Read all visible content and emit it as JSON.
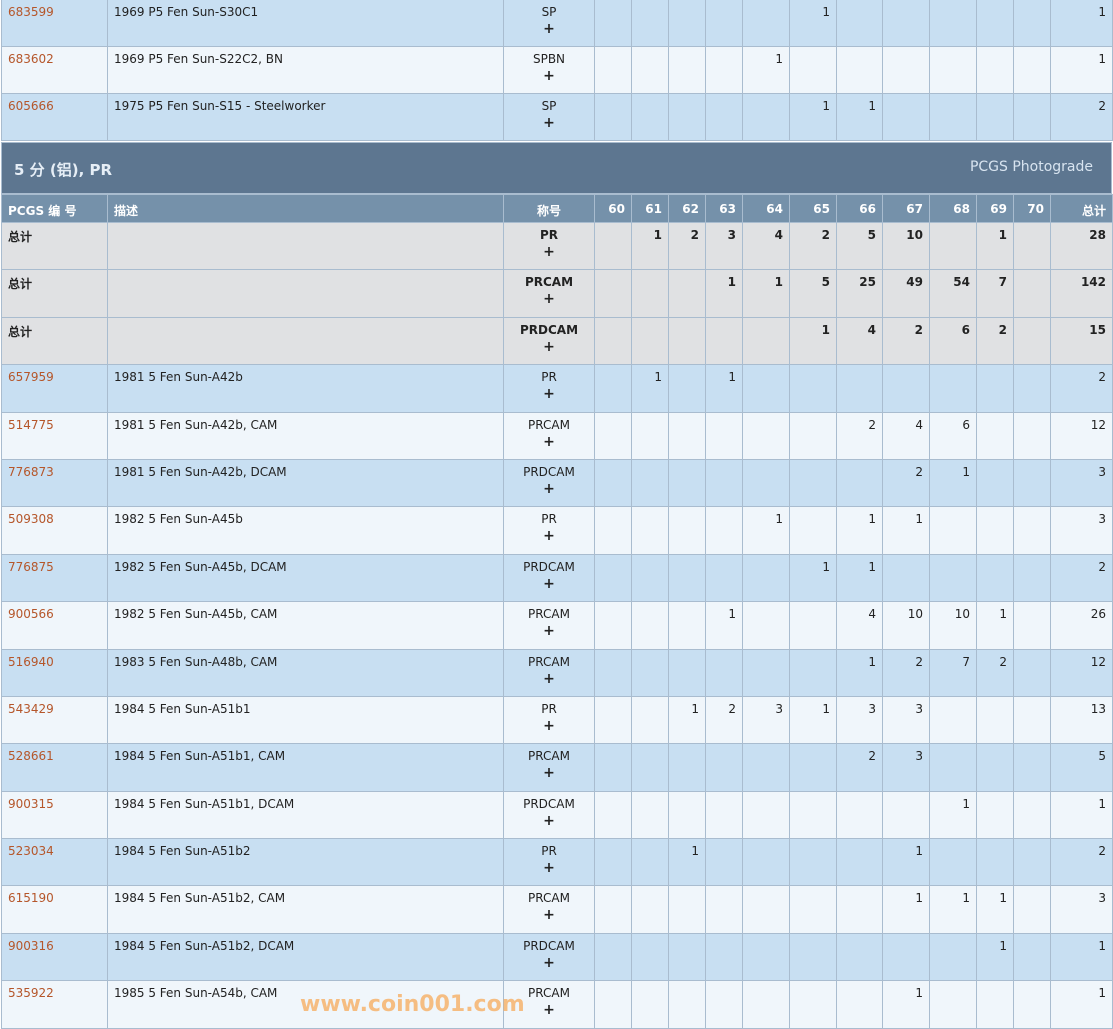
{
  "columns": {
    "pcgs_no": "PCGS 编 号",
    "description": "描述",
    "designation": "称号",
    "grades": [
      "60",
      "61",
      "62",
      "63",
      "64",
      "65",
      "66",
      "67",
      "68",
      "69",
      "70"
    ],
    "total": "总计"
  },
  "plus_label": "+",
  "top_rows": [
    {
      "pcgs": "683599",
      "desc": "1969 P5 Fen Sun-S30C1",
      "des": "SP",
      "grades": [
        "",
        "",
        "",
        "",
        "",
        "1",
        "",
        "",
        "",
        "",
        ""
      ],
      "total": "1"
    },
    {
      "pcgs": "683602",
      "desc": "1969 P5 Fen Sun-S22C2, BN",
      "des": "SPBN",
      "grades": [
        "",
        "",
        "",
        "",
        "1",
        "",
        "",
        "",
        "",
        "",
        ""
      ],
      "total": "1"
    },
    {
      "pcgs": "605666",
      "desc": "1975 P5 Fen Sun-S15 - Steelworker",
      "des": "SP",
      "grades": [
        "",
        "",
        "",
        "",
        "",
        "1",
        "1",
        "",
        "",
        "",
        ""
      ],
      "total": "2"
    }
  ],
  "section": {
    "title": "5 分 (铝), PR",
    "photograde_link": "PCGS Photograde"
  },
  "totals": [
    {
      "label": "总计",
      "des": "PR",
      "grades": [
        "",
        "1",
        "2",
        "3",
        "4",
        "2",
        "5",
        "10",
        "",
        "1",
        ""
      ],
      "total": "28"
    },
    {
      "label": "总计",
      "des": "PRCAM",
      "grades": [
        "",
        "",
        "",
        "1",
        "1",
        "5",
        "25",
        "49",
        "54",
        "7",
        ""
      ],
      "total": "142"
    },
    {
      "label": "总计",
      "des": "PRDCAM",
      "grades": [
        "",
        "",
        "",
        "",
        "",
        "1",
        "4",
        "2",
        "6",
        "2",
        ""
      ],
      "total": "15"
    }
  ],
  "rows": [
    {
      "pcgs": "657959",
      "desc": "1981 5 Fen Sun-A42b",
      "des": "PR",
      "grades": [
        "",
        "1",
        "",
        "1",
        "",
        "",
        "",
        "",
        "",
        "",
        ""
      ],
      "total": "2"
    },
    {
      "pcgs": "514775",
      "desc": "1981 5 Fen Sun-A42b, CAM",
      "des": "PRCAM",
      "grades": [
        "",
        "",
        "",
        "",
        "",
        "",
        "2",
        "4",
        "6",
        "",
        ""
      ],
      "total": "12"
    },
    {
      "pcgs": "776873",
      "desc": "1981 5 Fen Sun-A42b, DCAM",
      "des": "PRDCAM",
      "grades": [
        "",
        "",
        "",
        "",
        "",
        "",
        "",
        "2",
        "1",
        "",
        ""
      ],
      "total": "3"
    },
    {
      "pcgs": "509308",
      "desc": "1982 5 Fen Sun-A45b",
      "des": "PR",
      "grades": [
        "",
        "",
        "",
        "",
        "1",
        "",
        "1",
        "1",
        "",
        "",
        ""
      ],
      "total": "3"
    },
    {
      "pcgs": "776875",
      "desc": "1982 5 Fen Sun-A45b, DCAM",
      "des": "PRDCAM",
      "grades": [
        "",
        "",
        "",
        "",
        "",
        "1",
        "1",
        "",
        "",
        "",
        ""
      ],
      "total": "2"
    },
    {
      "pcgs": "900566",
      "desc": "1982 5 Fen Sun-A45b, CAM",
      "des": "PRCAM",
      "grades": [
        "",
        "",
        "",
        "1",
        "",
        "",
        "4",
        "10",
        "10",
        "1",
        ""
      ],
      "total": "26"
    },
    {
      "pcgs": "516940",
      "desc": "1983 5 Fen Sun-A48b, CAM",
      "des": "PRCAM",
      "grades": [
        "",
        "",
        "",
        "",
        "",
        "",
        "1",
        "2",
        "7",
        "2",
        ""
      ],
      "total": "12"
    },
    {
      "pcgs": "543429",
      "desc": "1984 5 Fen Sun-A51b1",
      "des": "PR",
      "grades": [
        "",
        "",
        "1",
        "2",
        "3",
        "1",
        "3",
        "3",
        "",
        "",
        ""
      ],
      "total": "13"
    },
    {
      "pcgs": "528661",
      "desc": "1984 5 Fen Sun-A51b1, CAM",
      "des": "PRCAM",
      "grades": [
        "",
        "",
        "",
        "",
        "",
        "",
        "2",
        "3",
        "",
        "",
        ""
      ],
      "total": "5"
    },
    {
      "pcgs": "900315",
      "desc": "1984 5 Fen Sun-A51b1, DCAM",
      "des": "PRDCAM",
      "grades": [
        "",
        "",
        "",
        "",
        "",
        "",
        "",
        "",
        "1",
        "",
        ""
      ],
      "total": "1"
    },
    {
      "pcgs": "523034",
      "desc": "1984 5 Fen Sun-A51b2",
      "des": "PR",
      "grades": [
        "",
        "",
        "1",
        "",
        "",
        "",
        "",
        "1",
        "",
        "",
        ""
      ],
      "total": "2"
    },
    {
      "pcgs": "615190",
      "desc": "1984 5 Fen Sun-A51b2, CAM",
      "des": "PRCAM",
      "grades": [
        "",
        "",
        "",
        "",
        "",
        "",
        "",
        "1",
        "1",
        "1",
        ""
      ],
      "total": "3"
    },
    {
      "pcgs": "900316",
      "desc": "1984 5 Fen Sun-A51b2, DCAM",
      "des": "PRDCAM",
      "grades": [
        "",
        "",
        "",
        "",
        "",
        "",
        "",
        "",
        "",
        "1",
        ""
      ],
      "total": "1"
    },
    {
      "pcgs": "535922",
      "desc": "1985 5 Fen Sun-A54b, CAM",
      "des": "PRCAM",
      "grades": [
        "",
        "",
        "",
        "",
        "",
        "",
        "",
        "1",
        "",
        "",
        ""
      ],
      "total": "1"
    }
  ],
  "watermark": "www.coin001.com",
  "colors": {
    "row_blue": "#c8dff2",
    "row_light": "#f0f6fb",
    "total_gray": "#e0e1e3",
    "section_header": "#5d7690",
    "column_header": "#7591aa",
    "link": "#b5562a"
  }
}
